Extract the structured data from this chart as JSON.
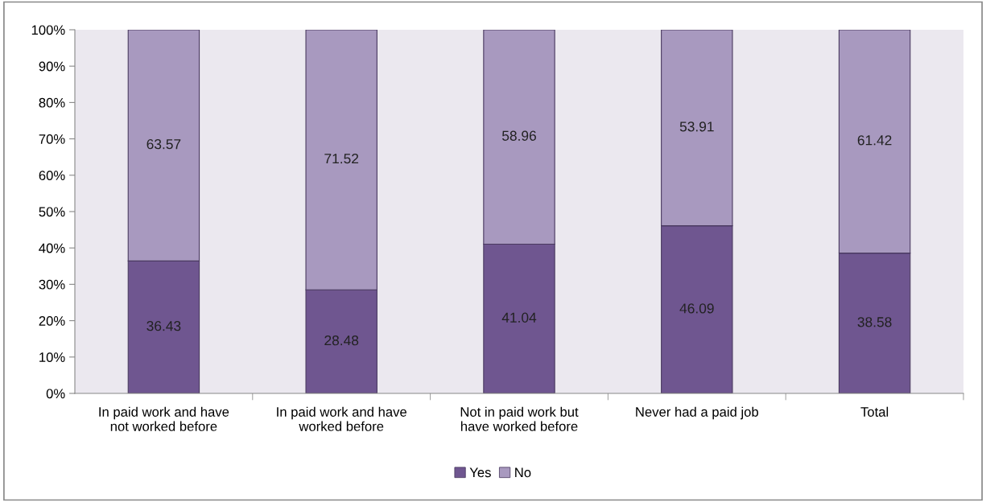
{
  "chart_data": {
    "type": "bar",
    "stacked": true,
    "categories": [
      "In paid work and have\nnot worked before",
      "In paid work and have\nworked before",
      "Not in paid work but\nhave worked before",
      "Never had a paid job",
      "Total"
    ],
    "series": [
      {
        "name": "Yes",
        "color": "#6f5690",
        "values": [
          36.43,
          28.48,
          41.04,
          46.09,
          38.58
        ]
      },
      {
        "name": "No",
        "color": "#a899bf",
        "values": [
          63.57,
          71.52,
          58.96,
          53.91,
          61.42
        ]
      }
    ],
    "ylim": [
      0,
      100
    ],
    "yticks": [
      {
        "value": 0,
        "label": "0%"
      },
      {
        "value": 10,
        "label": "10%"
      },
      {
        "value": 20,
        "label": "20%"
      },
      {
        "value": 30,
        "label": "30%"
      },
      {
        "value": 40,
        "label": "40%"
      },
      {
        "value": 50,
        "label": "50%"
      },
      {
        "value": 60,
        "label": "60%"
      },
      {
        "value": 70,
        "label": "70%"
      },
      {
        "value": 80,
        "label": "80%"
      },
      {
        "value": 90,
        "label": "90%"
      },
      {
        "value": 100,
        "label": "100%"
      }
    ],
    "data_labels": true,
    "legend": "bottom",
    "grid": false
  }
}
